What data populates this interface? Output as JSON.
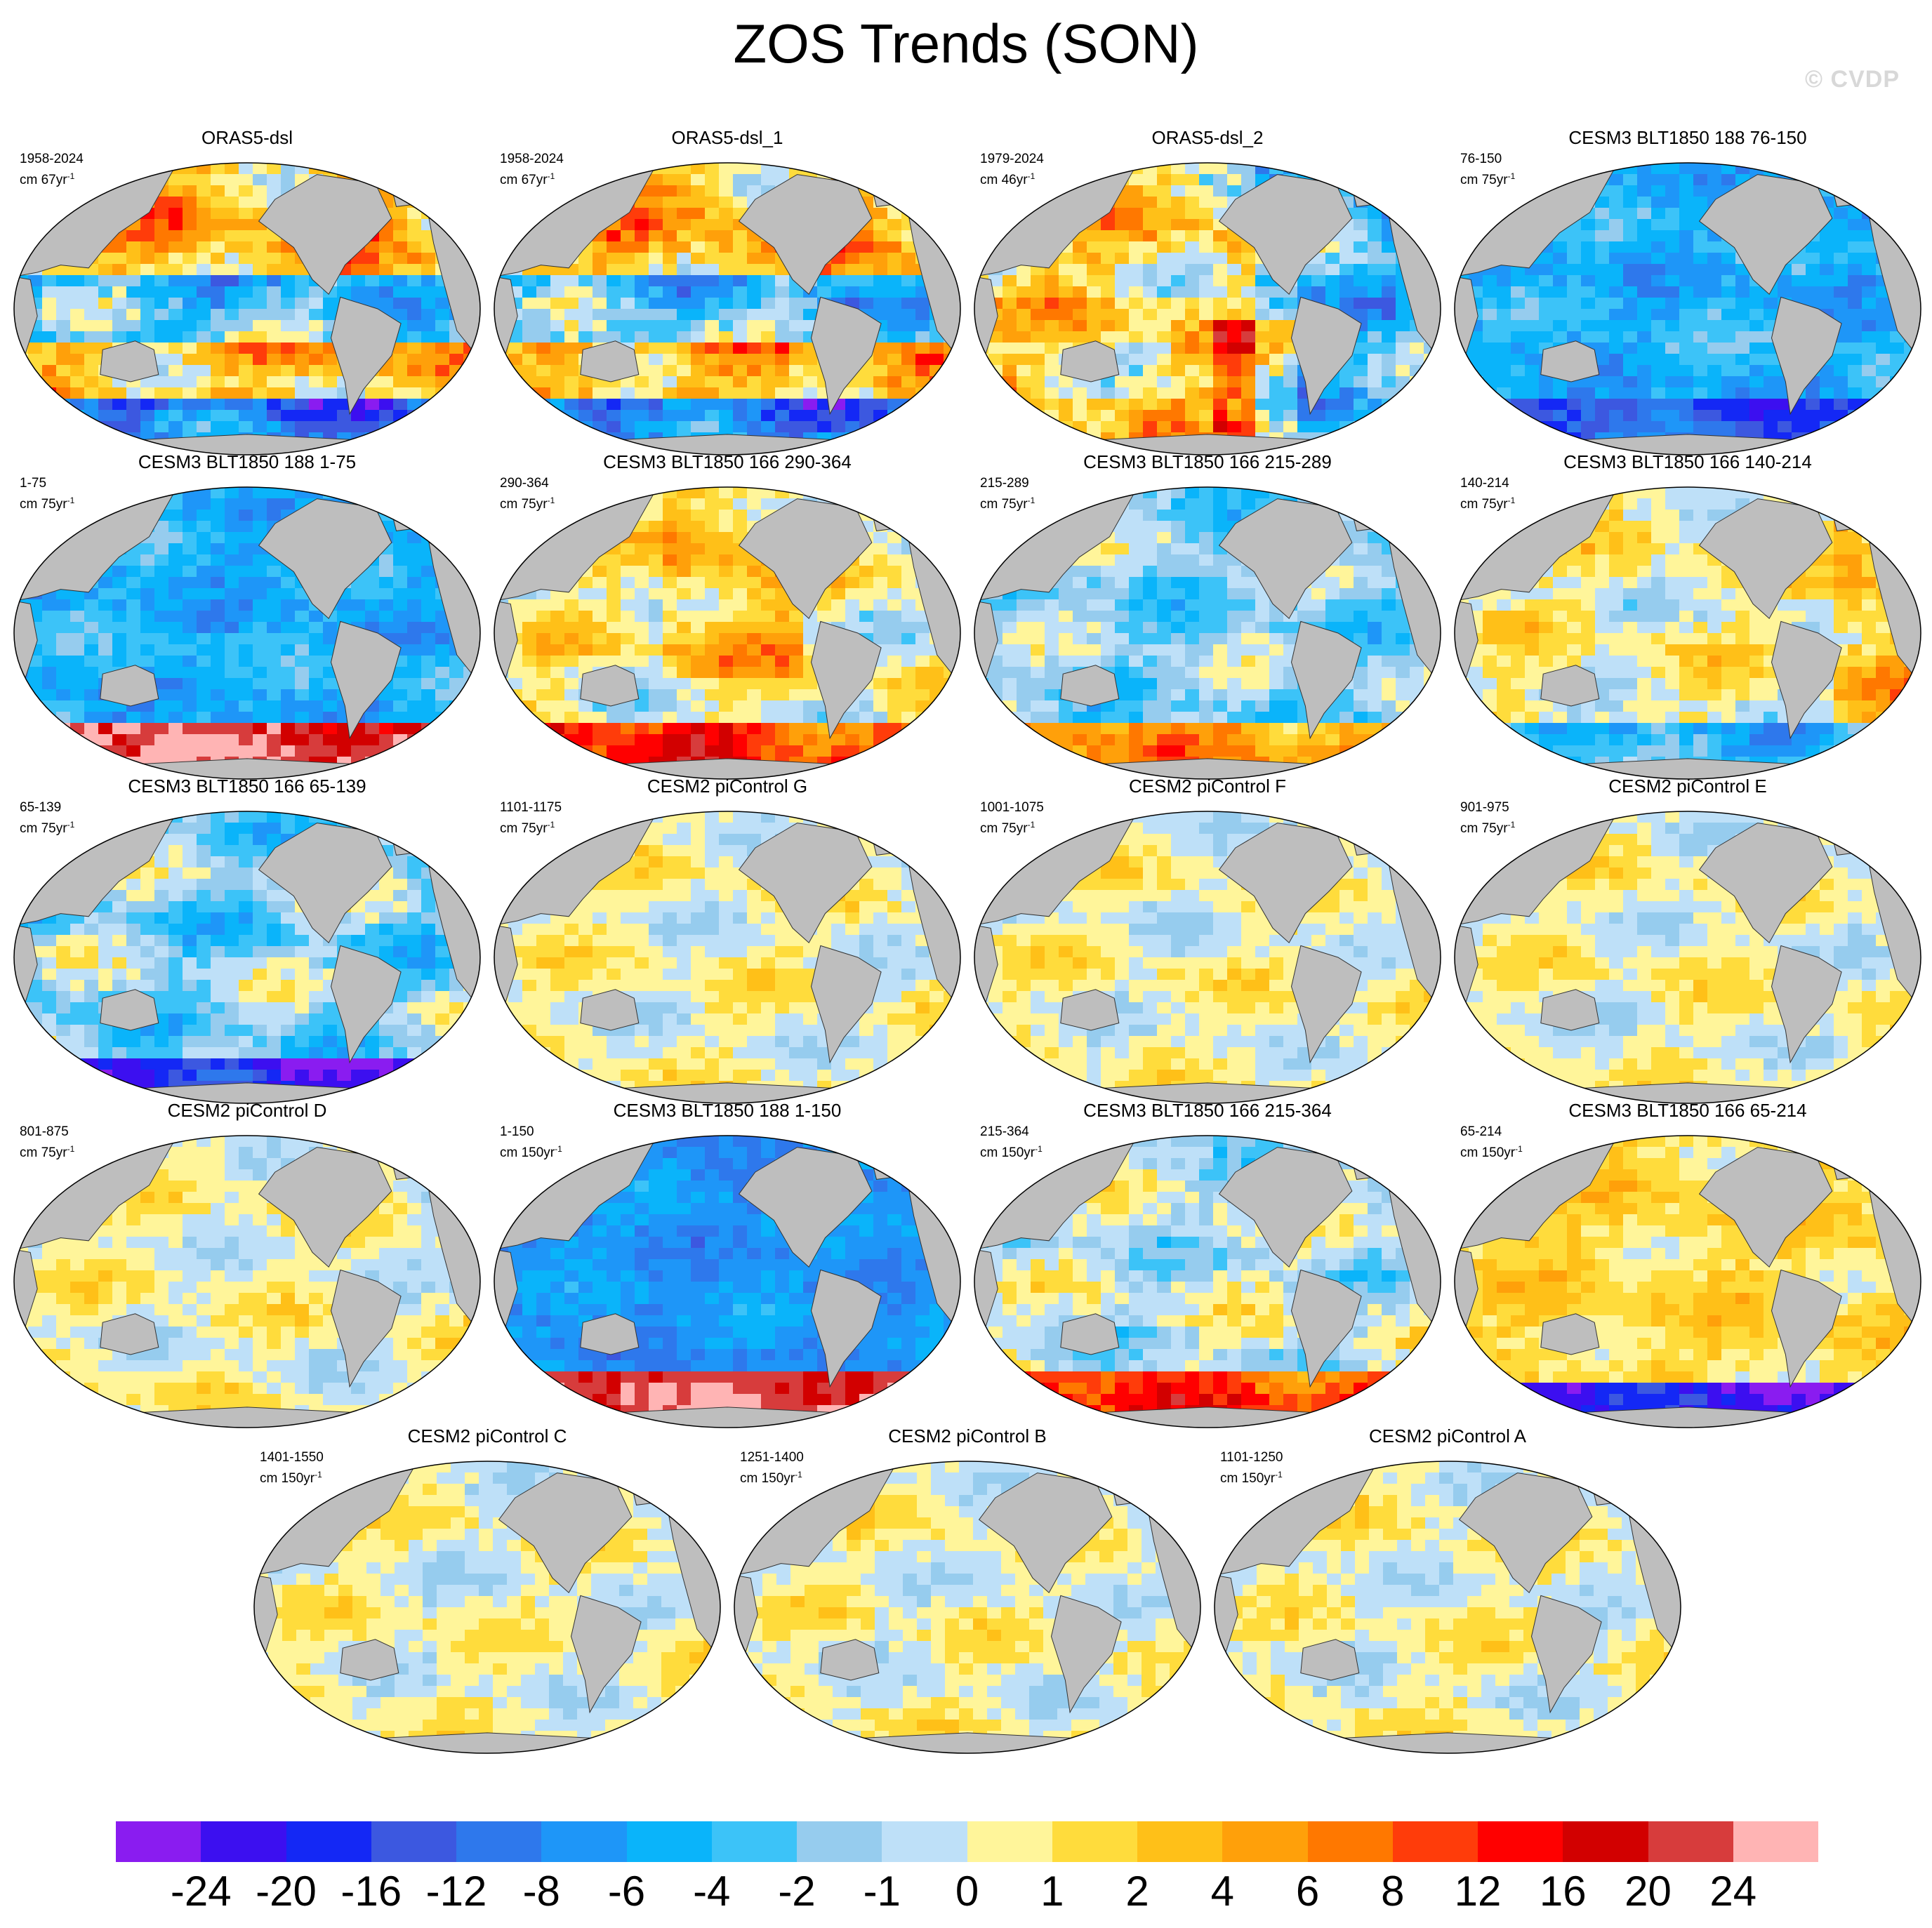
{
  "title": "ZOS Trends (SON)",
  "copyright": "© CVDP",
  "panels": [
    {
      "title": "ORAS5-dsl",
      "years": "1958-2024",
      "units": "cm 67yr",
      "exp": "-1",
      "pattern": "strong_obs1",
      "seed": 11
    },
    {
      "title": "ORAS5-dsl_1",
      "years": "1958-2024",
      "units": "cm 67yr",
      "exp": "-1",
      "pattern": "strong_obs1",
      "seed": 12
    },
    {
      "title": "ORAS5-dsl_2",
      "years": "1979-2024",
      "units": "cm 46yr",
      "exp": "-1",
      "pattern": "strong_obs2",
      "seed": 13
    },
    {
      "title": "CESM3 BLT1850 188 76-150",
      "years": "76-150",
      "units": "cm 75yr",
      "exp": "-1",
      "pattern": "blue_south",
      "seed": 14
    },
    {
      "title": "CESM3 BLT1850 188 1-75",
      "years": "1-75",
      "units": "cm 75yr",
      "exp": "-1",
      "pattern": "blue_redsouth",
      "seed": 15
    },
    {
      "title": "CESM3 BLT1850 166 290-364",
      "years": "290-364",
      "units": "cm 75yr",
      "exp": "-1",
      "pattern": "mixed_orange",
      "seed": 16
    },
    {
      "title": "CESM3 BLT1850 166 215-289",
      "years": "215-289",
      "units": "cm 75yr",
      "exp": "-1",
      "pattern": "blue_mixed",
      "seed": 17
    },
    {
      "title": "CESM3 BLT1850 166 140-214",
      "years": "140-214",
      "units": "cm 75yr",
      "exp": "-1",
      "pattern": "orange_atl",
      "seed": 18
    },
    {
      "title": "CESM3 BLT1850 166 65-139",
      "years": "65-139",
      "units": "cm 75yr",
      "exp": "-1",
      "pattern": "blue_purplesouth",
      "seed": 19
    },
    {
      "title": "CESM2 piControl G",
      "years": "1101-1175",
      "units": "cm 75yr",
      "exp": "-1",
      "pattern": "weak",
      "seed": 20
    },
    {
      "title": "CESM2 piControl F",
      "years": "1001-1075",
      "units": "cm 75yr",
      "exp": "-1",
      "pattern": "weak",
      "seed": 21
    },
    {
      "title": "CESM2 piControl E",
      "years": "901-975",
      "units": "cm 75yr",
      "exp": "-1",
      "pattern": "weak",
      "seed": 22
    },
    {
      "title": "CESM2 piControl D",
      "years": "801-875",
      "units": "cm 75yr",
      "exp": "-1",
      "pattern": "weak",
      "seed": 23
    },
    {
      "title": "CESM3 BLT1850 188 1-150",
      "years": "1-150",
      "units": "cm 150yr",
      "exp": "-1",
      "pattern": "deep_blue",
      "seed": 24
    },
    {
      "title": "CESM3 BLT1850 166 215-364",
      "years": "215-364",
      "units": "cm 150yr",
      "exp": "-1",
      "pattern": "mixed_redsouth",
      "seed": 25
    },
    {
      "title": "CESM3 BLT1850 166 65-214",
      "years": "65-214",
      "units": "cm 150yr",
      "exp": "-1",
      "pattern": "orange_purplesouth",
      "seed": 26
    },
    {
      "title": "CESM2 piControl C",
      "years": "1401-1550",
      "units": "cm 150yr",
      "exp": "-1",
      "pattern": "weak",
      "seed": 27
    },
    {
      "title": "CESM2 piControl B",
      "years": "1251-1400",
      "units": "cm 150yr",
      "exp": "-1",
      "pattern": "weak",
      "seed": 28
    },
    {
      "title": "CESM2 piControl A",
      "years": "1101-1250",
      "units": "cm 150yr",
      "exp": "-1",
      "pattern": "weak",
      "seed": 29
    }
  ],
  "colorbar": {
    "colors": [
      "#8a1cf0",
      "#3c0ff0",
      "#1428f5",
      "#3c58e0",
      "#2e78ec",
      "#1e96f8",
      "#0ab4fa",
      "#3cc3f8",
      "#96ccee",
      "#bee0f8",
      "#fff59a",
      "#ffdc3c",
      "#ffc018",
      "#ffa00a",
      "#ff7800",
      "#ff3c0a",
      "#ff0000",
      "#d20000",
      "#d73c3c",
      "#ffb4b4"
    ],
    "labels": [
      "-24",
      "-20",
      "-16",
      "-12",
      "-8",
      "-6",
      "-4",
      "-2",
      "-1",
      "0",
      "1",
      "2",
      "4",
      "6",
      "8",
      "12",
      "16",
      "20",
      "24"
    ]
  },
  "land_color": "#bebebe"
}
